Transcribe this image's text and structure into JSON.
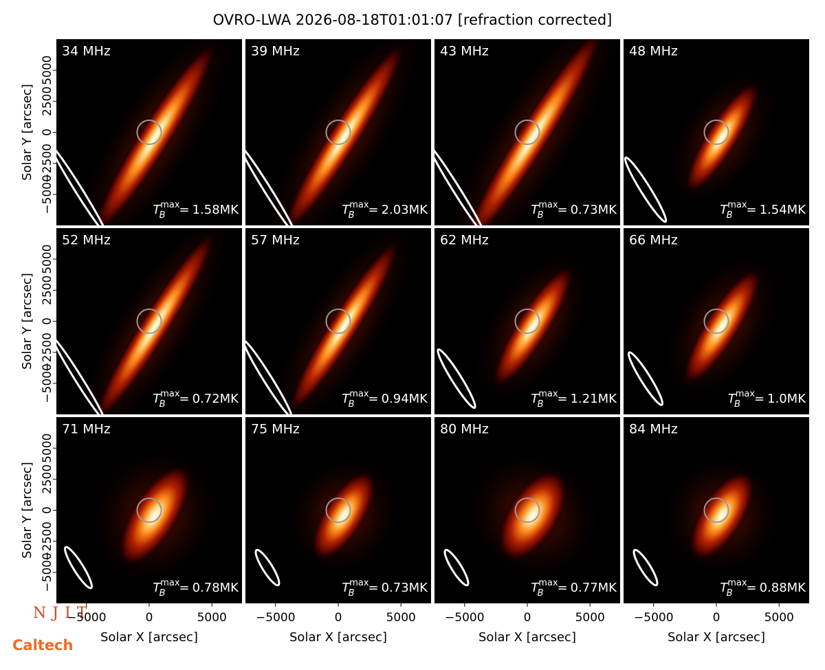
{
  "chart_data": {
    "type": "image-grid",
    "title": "OVRO-LWA 2026-08-18T01:01:07 [refraction corrected]",
    "x_label": "Solar X [arcsec]",
    "y_label": "Solar Y [arcsec]",
    "xlim": [
      -7400,
      7400
    ],
    "ylim": [
      -7500,
      7500
    ],
    "xticks": [
      {
        "value": -5000,
        "label": "−5000"
      },
      0,
      5000
    ],
    "yticks": [
      {
        "value": -5000,
        "label": "−5000"
      },
      {
        "value": -2500,
        "label": "−2500"
      },
      0,
      2500,
      5000
    ],
    "tb_base": "T",
    "tb_sub": "B",
    "tb_sup": "max",
    "tb_eq": "=",
    "panels": [
      {
        "label": "34 MHz",
        "tmax": "1.58MK"
      },
      {
        "label": "39 MHz",
        "tmax": "2.03MK"
      },
      {
        "label": "43 MHz",
        "tmax": "0.73MK"
      },
      {
        "label": "48 MHz",
        "tmax": "1.54MK"
      },
      {
        "label": "52 MHz",
        "tmax": "0.72MK"
      },
      {
        "label": "57 MHz",
        "tmax": "0.94MK"
      },
      {
        "label": "62 MHz",
        "tmax": "1.21MK"
      },
      {
        "label": "66 MHz",
        "tmax": "1.0MK"
      },
      {
        "label": "71 MHz",
        "tmax": "0.78MK"
      },
      {
        "label": "75 MHz",
        "tmax": "0.73MK"
      },
      {
        "label": "80 MHz",
        "tmax": "0.77MK"
      },
      {
        "label": "84 MHz",
        "tmax": "0.88MK"
      }
    ],
    "logos": [
      "NJIT",
      "Caltech"
    ]
  }
}
